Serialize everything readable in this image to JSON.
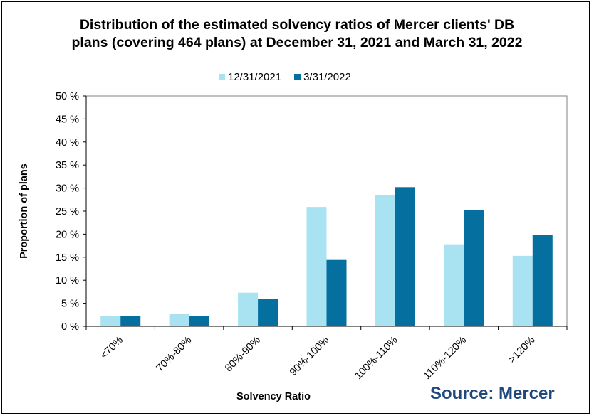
{
  "chart_data": {
    "type": "bar",
    "title_line1": "Distribution of the estimated solvency ratios of Mercer clients' DB",
    "title_line2": "plans (covering 464 plans) at December 31, 2021 and March 31, 2022",
    "xlabel": "Solvency  Ratio",
    "ylabel": "Proportion of plans",
    "ylim": [
      0,
      50
    ],
    "yticks": [
      0,
      5,
      10,
      15,
      20,
      25,
      30,
      35,
      40,
      45,
      50
    ],
    "ytick_labels": [
      "0 %",
      "5 %",
      "10 %",
      "15 %",
      "20 %",
      "25 %",
      "30 %",
      "35 %",
      "40 %",
      "45 %",
      "50 %"
    ],
    "categories": [
      "<70%",
      "70%-80%",
      "80%-90%",
      "90%-100%",
      "100%-110%",
      "110%-120%",
      ">120%"
    ],
    "series": [
      {
        "name": "12/31/2021",
        "color": "#a9e2f0",
        "values": [
          2.3,
          2.7,
          7.3,
          25.9,
          28.4,
          17.8,
          15.3
        ]
      },
      {
        "name": "3/31/2022",
        "color": "#05709f",
        "values": [
          2.2,
          2.2,
          6.0,
          14.4,
          30.2,
          25.2,
          19.8
        ]
      }
    ],
    "grid": false,
    "legend_position": "top-center"
  },
  "source_label": "Source: Mercer"
}
